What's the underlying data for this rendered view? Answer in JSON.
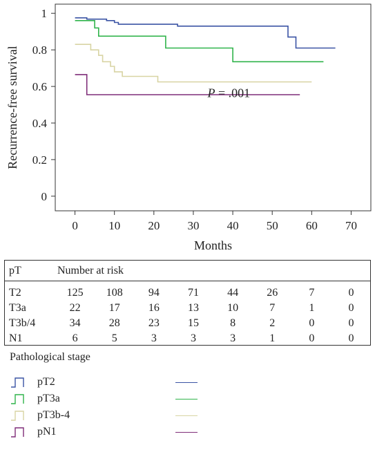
{
  "chart_data": {
    "type": "line",
    "subtype": "kaplan-meier step",
    "xlabel": "Months",
    "ylabel": "Recurrence-free survival",
    "xlim": [
      -5,
      75
    ],
    "ylim": [
      -0.08,
      1.05
    ],
    "x_ticks": [
      "0",
      "10",
      "20",
      "30",
      "40",
      "50",
      "60",
      "70"
    ],
    "y_ticks": [
      "0",
      "0.2",
      "0.4",
      "0.6",
      "0.8",
      "1"
    ],
    "annotation": {
      "prefix": "P",
      "suffix": " = .001",
      "x": 39,
      "y": 0.565
    },
    "series": [
      {
        "key": "pT2",
        "color": "#3a53a4",
        "points": [
          [
            0,
            0.975
          ],
          [
            3,
            0.975
          ],
          [
            3,
            0.968
          ],
          [
            8,
            0.968
          ],
          [
            8,
            0.96
          ],
          [
            10,
            0.96
          ],
          [
            10,
            0.95
          ],
          [
            11,
            0.95
          ],
          [
            11,
            0.94
          ],
          [
            26,
            0.94
          ],
          [
            26,
            0.93
          ],
          [
            54,
            0.93
          ],
          [
            54,
            0.87
          ],
          [
            56,
            0.87
          ],
          [
            56,
            0.81
          ],
          [
            66,
            0.81
          ]
        ]
      },
      {
        "key": "pT3a",
        "color": "#2fb34a",
        "points": [
          [
            0,
            0.96
          ],
          [
            5,
            0.96
          ],
          [
            5,
            0.92
          ],
          [
            6,
            0.92
          ],
          [
            6,
            0.875
          ],
          [
            23,
            0.875
          ],
          [
            23,
            0.81
          ],
          [
            40,
            0.81
          ],
          [
            40,
            0.735
          ],
          [
            63,
            0.735
          ]
        ]
      },
      {
        "key": "pT3b-4",
        "color": "#d8d4a3",
        "points": [
          [
            0,
            0.83
          ],
          [
            4,
            0.83
          ],
          [
            4,
            0.8
          ],
          [
            6,
            0.8
          ],
          [
            6,
            0.77
          ],
          [
            7,
            0.77
          ],
          [
            7,
            0.735
          ],
          [
            9,
            0.735
          ],
          [
            9,
            0.71
          ],
          [
            10,
            0.71
          ],
          [
            10,
            0.68
          ],
          [
            12,
            0.68
          ],
          [
            12,
            0.655
          ],
          [
            21,
            0.655
          ],
          [
            21,
            0.625
          ],
          [
            60,
            0.625
          ]
        ]
      },
      {
        "key": "pN1",
        "color": "#7f2c78",
        "points": [
          [
            0,
            0.665
          ],
          [
            3,
            0.665
          ],
          [
            3,
            0.555
          ],
          [
            57,
            0.555
          ]
        ]
      }
    ]
  },
  "risk_table": {
    "header_label": "pT",
    "header_title": "Number at risk",
    "rows": [
      {
        "label": "T2",
        "values": [
          "125",
          "108",
          "94",
          "71",
          "44",
          "26",
          "7",
          "0"
        ]
      },
      {
        "label": "T3a",
        "values": [
          "22",
          "17",
          "16",
          "13",
          "10",
          "7",
          "1",
          "0"
        ]
      },
      {
        "label": "T3b/4",
        "values": [
          "34",
          "28",
          "23",
          "15",
          "8",
          "2",
          "0",
          "0"
        ]
      },
      {
        "label": "N1",
        "values": [
          "6",
          "5",
          "3",
          "3",
          "3",
          "1",
          "0",
          "0"
        ]
      }
    ]
  },
  "legend": {
    "title": "Pathological stage",
    "items": [
      {
        "label": "pT2",
        "color": "#3a53a4",
        "icon": "step-line-icon"
      },
      {
        "label": "pT3a",
        "color": "#2fb34a",
        "icon": "step-line-icon"
      },
      {
        "label": "pT3b-4",
        "color": "#d8d4a3",
        "icon": "step-line-icon"
      },
      {
        "label": "pN1",
        "color": "#7f2c78",
        "icon": "step-line-icon"
      }
    ]
  }
}
